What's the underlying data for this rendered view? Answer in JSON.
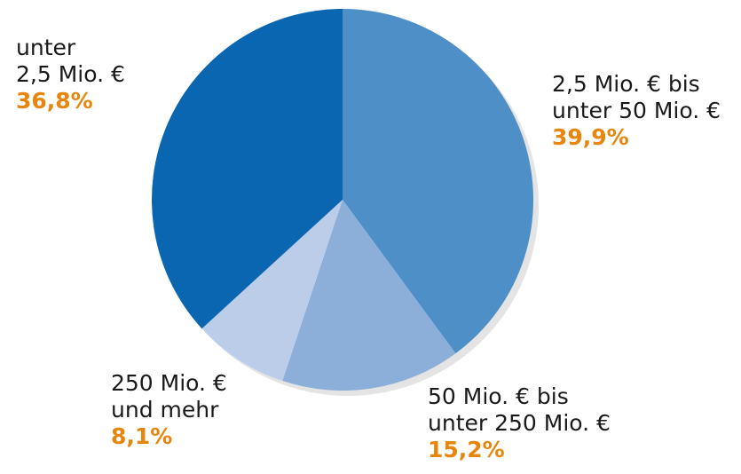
{
  "chart_data": {
    "type": "pie",
    "categories": [
      [
        "2,5 Mio. € bis",
        "unter 50 Mio. €"
      ],
      [
        "50 Mio. € bis",
        "unter 250 Mio. €"
      ],
      [
        "250 Mio. €",
        "und mehr"
      ],
      [
        "unter",
        "2,5 Mio. €"
      ]
    ],
    "values": [
      39.9,
      15.2,
      8.1,
      36.8
    ],
    "value_labels": [
      "39,9%",
      "15,2%",
      "8,1%",
      "36,8%"
    ],
    "colors": [
      "#4f8fc8",
      "#8bafd8",
      "#bccde9",
      "#0a66b0"
    ],
    "label_color": "#e8850c"
  }
}
